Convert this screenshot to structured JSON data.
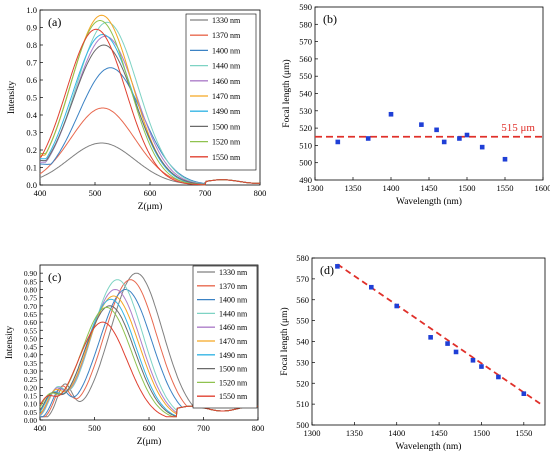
{
  "chart_data": [
    {
      "panel": "(a)",
      "type": "line",
      "xlabel": "Z(μm)",
      "ylabel": "Intensity",
      "xlim": [
        400,
        800
      ],
      "ylim": [
        0.0,
        1.0
      ],
      "xticks": [
        400,
        500,
        600,
        700,
        800
      ],
      "yticks": [
        0.0,
        0.1,
        0.2,
        0.3,
        0.4,
        0.5,
        0.6,
        0.7,
        0.8,
        0.9,
        1.0
      ],
      "yticklabels": [
        "0.0",
        "0.1",
        "0.2",
        "0.3",
        "0.4",
        "0.5",
        "0.6",
        "0.7",
        "0.8",
        "0.9",
        "1.0"
      ],
      "legend_position": "top-right",
      "series": [
        {
          "name": "1330 nm",
          "color": "#808080",
          "peak_x": 512,
          "peak_y": 0.24,
          "base_y": 0.04,
          "base_x": 400,
          "sigma": 60
        },
        {
          "name": "1370 nm",
          "color": "#e8694f",
          "peak_x": 514,
          "peak_y": 0.44,
          "base_y": 0.06,
          "base_x": 400,
          "sigma": 58
        },
        {
          "name": "1400 nm",
          "color": "#3b82c4",
          "peak_x": 528,
          "peak_y": 0.67,
          "base_y": 0.12,
          "base_x": 400,
          "sigma": 58
        },
        {
          "name": "1440 nm",
          "color": "#7ed3c4",
          "peak_x": 522,
          "peak_y": 0.93,
          "base_y": 0.14,
          "base_x": 400,
          "sigma": 56
        },
        {
          "name": "1460 nm",
          "color": "#ad7ec9",
          "peak_x": 519,
          "peak_y": 0.85,
          "base_y": 0.13,
          "base_x": 400,
          "sigma": 56
        },
        {
          "name": "1470 nm",
          "color": "#f5a623",
          "peak_x": 512,
          "peak_y": 0.97,
          "base_y": 0.17,
          "base_x": 400,
          "sigma": 55
        },
        {
          "name": "1490 nm",
          "color": "#35b5e5",
          "peak_x": 514,
          "peak_y": 0.86,
          "base_y": 0.15,
          "base_x": 400,
          "sigma": 55
        },
        {
          "name": "1500 nm",
          "color": "#6a6a6a",
          "peak_x": 516,
          "peak_y": 0.8,
          "base_y": 0.14,
          "base_x": 400,
          "sigma": 56
        },
        {
          "name": "1520 nm",
          "color": "#8fc24f",
          "peak_x": 509,
          "peak_y": 0.94,
          "base_y": 0.18,
          "base_x": 400,
          "sigma": 54
        },
        {
          "name": "1550 nm",
          "color": "#e04030",
          "peak_x": 502,
          "peak_y": 0.89,
          "base_y": 0.16,
          "base_x": 400,
          "sigma": 54
        }
      ]
    },
    {
      "panel": "(b)",
      "type": "scatter",
      "xlabel": "Wavelength (nm)",
      "ylabel": "Focal length (μm)",
      "xlim": [
        1300,
        1600
      ],
      "ylim": [
        490,
        590
      ],
      "xticks": [
        1300,
        1350,
        1400,
        1450,
        1500,
        1550,
        1600
      ],
      "yticks": [
        490,
        500,
        510,
        520,
        530,
        540,
        550,
        560,
        570,
        580,
        590
      ],
      "x": [
        1330,
        1370,
        1400,
        1440,
        1460,
        1470,
        1490,
        1500,
        1520,
        1550
      ],
      "y": [
        512,
        514,
        528,
        522,
        519,
        512,
        514,
        516,
        509,
        502
      ],
      "marker_color": "#1f3fd6",
      "reference_line": {
        "y": 515,
        "label": "515 μm",
        "color": "#e0302a"
      }
    },
    {
      "panel": "(c)",
      "type": "line",
      "xlabel": "Z(μm)",
      "ylabel": "Intensity",
      "xlim": [
        400,
        800
      ],
      "ylim": [
        0.0,
        0.95
      ],
      "xticks": [
        400,
        500,
        600,
        700,
        800
      ],
      "yticks": [
        0.0,
        0.05,
        0.1,
        0.15,
        0.2,
        0.25,
        0.3,
        0.35,
        0.4,
        0.45,
        0.5,
        0.55,
        0.6,
        0.65,
        0.7,
        0.75,
        0.8,
        0.85,
        0.9
      ],
      "yticklabels": [
        "0.00",
        "0.05",
        "0.10",
        "0.15",
        "0.20",
        "0.25",
        "0.30",
        "0.35",
        "0.40",
        "0.45",
        "0.50",
        "0.55",
        "0.60",
        "0.65",
        "0.70",
        "0.75",
        "0.80",
        "0.85",
        "0.90"
      ],
      "legend_position": "top-right",
      "series": [
        {
          "name": "1330 nm",
          "color": "#808080",
          "peak_x": 577,
          "peak_y": 0.9,
          "side_x": 445,
          "side_y": 0.2,
          "sigma": 48
        },
        {
          "name": "1370 nm",
          "color": "#e8694f",
          "peak_x": 566,
          "peak_y": 0.86,
          "side_x": 440,
          "side_y": 0.18,
          "sigma": 48
        },
        {
          "name": "1400 nm",
          "color": "#3b82c4",
          "peak_x": 557,
          "peak_y": 0.8,
          "side_x": 436,
          "side_y": 0.16,
          "sigma": 48
        },
        {
          "name": "1440 nm",
          "color": "#7ed3c4",
          "peak_x": 542,
          "peak_y": 0.86,
          "side_x": 430,
          "side_y": 0.15,
          "sigma": 47
        },
        {
          "name": "1460 nm",
          "color": "#ad7ec9",
          "peak_x": 538,
          "peak_y": 0.8,
          "side_x": 428,
          "side_y": 0.14,
          "sigma": 47
        },
        {
          "name": "1470 nm",
          "color": "#f5a623",
          "peak_x": 535,
          "peak_y": 0.76,
          "side_x": 426,
          "side_y": 0.13,
          "sigma": 47
        },
        {
          "name": "1490 nm",
          "color": "#35b5e5",
          "peak_x": 530,
          "peak_y": 0.74,
          "side_x": 422,
          "side_y": 0.12,
          "sigma": 46
        },
        {
          "name": "1500 nm",
          "color": "#6a6a6a",
          "peak_x": 528,
          "peak_y": 0.7,
          "side_x": 420,
          "side_y": 0.12,
          "sigma": 46
        },
        {
          "name": "1520 nm",
          "color": "#8fc24f",
          "peak_x": 522,
          "peak_y": 0.69,
          "side_x": 416,
          "side_y": 0.11,
          "sigma": 46
        },
        {
          "name": "1550 nm",
          "color": "#e04030",
          "peak_x": 515,
          "peak_y": 0.6,
          "side_x": 412,
          "side_y": 0.1,
          "sigma": 45
        }
      ]
    },
    {
      "panel": "(d)",
      "type": "scatter",
      "xlabel": "Wavelength (nm)",
      "ylabel": "Focal length (μm)",
      "xlim": [
        1300,
        1575
      ],
      "ylim": [
        500,
        580
      ],
      "xticks": [
        1300,
        1350,
        1400,
        1450,
        1500,
        1550
      ],
      "yticks": [
        500,
        510,
        520,
        530,
        540,
        550,
        560,
        570,
        580
      ],
      "x": [
        1330,
        1370,
        1400,
        1440,
        1460,
        1470,
        1490,
        1500,
        1520,
        1550
      ],
      "y": [
        576,
        566,
        557,
        542,
        539,
        535,
        531,
        528,
        523,
        515
      ],
      "marker_color": "#1f3fd6",
      "fit_line": {
        "x": [
          1330,
          1570
        ],
        "y": [
          577,
          510
        ],
        "color": "#e0302a"
      }
    }
  ]
}
